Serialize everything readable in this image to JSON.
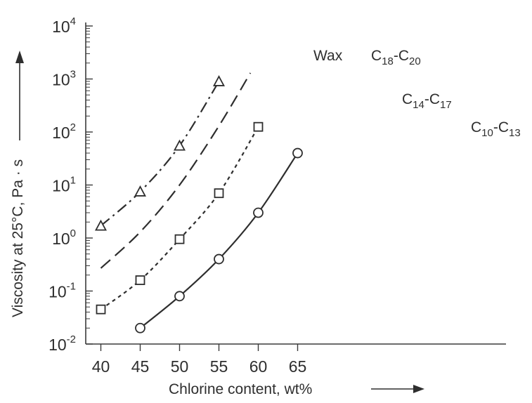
{
  "chart_data": {
    "type": "line",
    "xlabel": "Chlorine content, wt%",
    "ylabel": "Viscosity at 25°C, Pa · s",
    "xlim": [
      39,
      67
    ],
    "xticks": [
      40,
      45,
      50,
      55,
      60,
      65
    ],
    "ylim": [
      0.01,
      10000
    ],
    "yscale": "log",
    "yticks": [
      {
        "base": "10",
        "exp": "-2",
        "value": 0.01
      },
      {
        "base": "10",
        "exp": "-1",
        "value": 0.1
      },
      {
        "base": "10",
        "exp": "0",
        "value": 1
      },
      {
        "base": "10",
        "exp": "1",
        "value": 10
      },
      {
        "base": "10",
        "exp": "2",
        "value": 100
      },
      {
        "base": "10",
        "exp": "3",
        "value": 1000
      },
      {
        "base": "10",
        "exp": "4",
        "value": 10000
      }
    ],
    "grid": false,
    "series": [
      {
        "label_parts": [
          {
            "t": "Wax"
          }
        ],
        "marker": "triangle",
        "dash": "dashdot",
        "x": [
          40,
          45,
          50,
          55
        ],
        "y": [
          1.7,
          7.5,
          55,
          900
        ],
        "markers": true
      },
      {
        "label_parts": [
          {
            "t": "C"
          },
          {
            "t": "18",
            "sub": true
          },
          {
            "t": "-C"
          },
          {
            "t": "20",
            "sub": true
          }
        ],
        "marker": "none",
        "dash": "dashed",
        "x": [
          40,
          45,
          50,
          55,
          59
        ],
        "y": [
          0.27,
          1.3,
          10,
          130,
          1300
        ],
        "markers": false
      },
      {
        "label_parts": [
          {
            "t": "C"
          },
          {
            "t": "14",
            "sub": true
          },
          {
            "t": "-C"
          },
          {
            "t": "17",
            "sub": true
          }
        ],
        "marker": "square",
        "dash": "dotted",
        "x": [
          40,
          45,
          50,
          55,
          60
        ],
        "y": [
          0.045,
          0.16,
          0.95,
          7,
          125
        ],
        "markers": true
      },
      {
        "label_parts": [
          {
            "t": "C"
          },
          {
            "t": "10",
            "sub": true
          },
          {
            "t": "-C"
          },
          {
            "t": "13",
            "sub": true
          }
        ],
        "marker": "circle",
        "dash": "solid",
        "x": [
          45,
          50,
          55,
          60,
          65
        ],
        "y": [
          0.02,
          0.08,
          0.4,
          3,
          40
        ],
        "markers": true
      }
    ]
  }
}
